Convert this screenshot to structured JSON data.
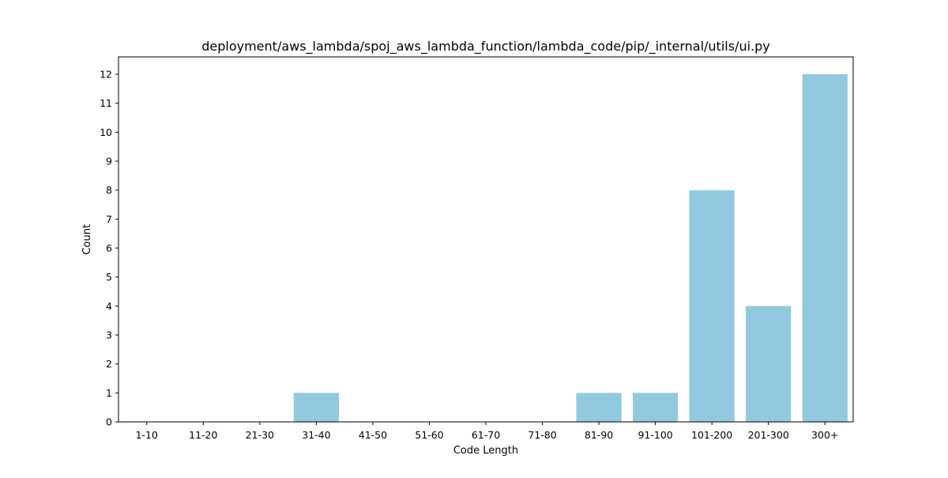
{
  "chart_data": {
    "type": "bar",
    "title": "deployment/aws_lambda/spoj_aws_lambda_function/lambda_code/pip/_internal/utils/ui.py",
    "xlabel": "Code Length",
    "ylabel": "Count",
    "categories": [
      "1-10",
      "11-20",
      "21-30",
      "31-40",
      "41-50",
      "51-60",
      "61-70",
      "71-80",
      "81-90",
      "91-100",
      "101-200",
      "201-300",
      "300+"
    ],
    "values": [
      0,
      0,
      0,
      1,
      0,
      0,
      0,
      0,
      1,
      1,
      8,
      4,
      12
    ],
    "ylim": [
      0,
      12.6
    ],
    "yticks": [
      "0",
      "1",
      "2",
      "3",
      "4",
      "5",
      "6",
      "7",
      "8",
      "9",
      "10",
      "11",
      "12"
    ],
    "bar_color": "#92c9df",
    "grid": false,
    "legend": "none"
  }
}
